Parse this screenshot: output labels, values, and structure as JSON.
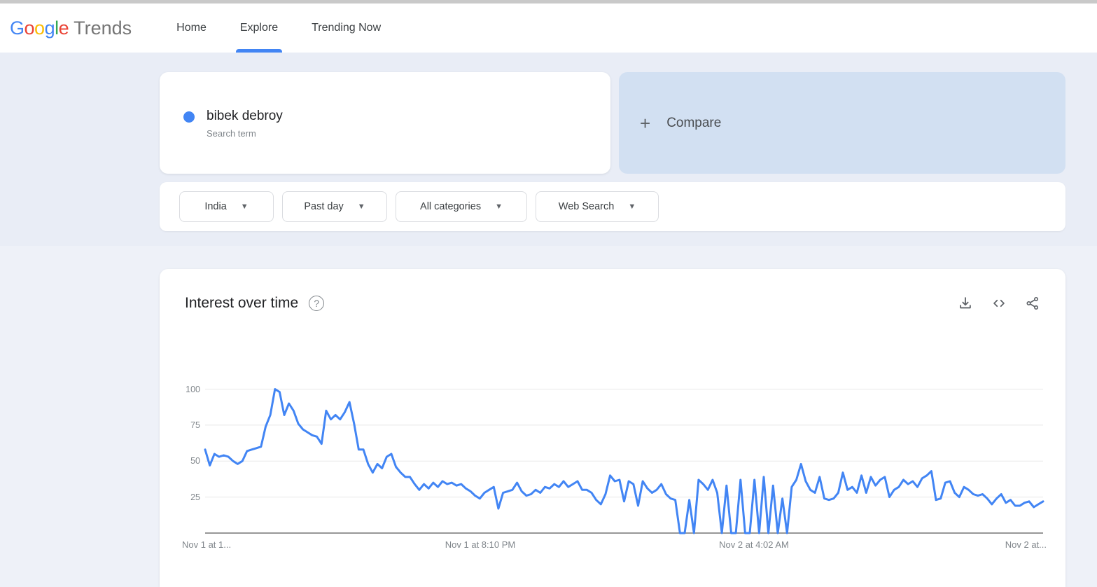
{
  "header": {
    "logo_letters": [
      {
        "ch": "G",
        "color": "#4285f4"
      },
      {
        "ch": "o",
        "color": "#ea4335"
      },
      {
        "ch": "o",
        "color": "#fbbc05"
      },
      {
        "ch": "g",
        "color": "#4285f4"
      },
      {
        "ch": "l",
        "color": "#34a853"
      },
      {
        "ch": "e",
        "color": "#ea4335"
      }
    ],
    "logo_suffix": "Trends",
    "nav": [
      {
        "label": "Home",
        "active": false
      },
      {
        "label": "Explore",
        "active": true
      },
      {
        "label": "Trending Now",
        "active": false
      }
    ]
  },
  "search_card": {
    "term": "bibek debroy",
    "type_label": "Search term",
    "dot_color": "#4285f4"
  },
  "compare_card": {
    "plus": "+",
    "label": "Compare"
  },
  "filters": [
    {
      "label": "India"
    },
    {
      "label": "Past day"
    },
    {
      "label": "All categories"
    },
    {
      "label": "Web Search"
    }
  ],
  "chart_card": {
    "title": "Interest over time",
    "help_glyph": "?",
    "action_icons": [
      "download-icon",
      "embed-icon",
      "share-icon"
    ]
  },
  "chart_data": {
    "type": "line",
    "title": "Interest over time",
    "series_name": "bibek debroy",
    "line_color": "#4285f4",
    "grid_color": "#e8e8e8",
    "axis_color": "#757575",
    "ylim": [
      0,
      100
    ],
    "y_ticks": [
      100,
      75,
      50,
      25
    ],
    "x_labels": [
      "Nov 1 at 1...",
      "Nov 1 at 8:10 PM",
      "Nov 2 at 4:02 AM",
      "Nov 2 at..."
    ],
    "values": [
      58,
      47,
      55,
      53,
      54,
      53,
      50,
      48,
      50,
      57,
      58,
      59,
      60,
      74,
      82,
      100,
      98,
      82,
      90,
      85,
      76,
      72,
      70,
      68,
      67,
      62,
      85,
      79,
      82,
      79,
      84,
      91,
      76,
      58,
      58,
      48,
      42,
      48,
      45,
      53,
      55,
      46,
      42,
      39,
      39,
      34,
      30,
      34,
      31,
      35,
      32,
      36,
      34,
      35,
      33,
      34,
      31,
      29,
      26,
      24,
      28,
      30,
      32,
      17,
      28,
      29,
      30,
      35,
      29,
      26,
      27,
      30,
      28,
      32,
      31,
      34,
      32,
      36,
      32,
      34,
      36,
      30,
      30,
      28,
      23,
      20,
      27,
      40,
      36,
      37,
      22,
      36,
      34,
      19,
      36,
      31,
      28,
      30,
      34,
      27,
      24,
      23,
      0,
      0,
      23,
      0,
      37,
      34,
      30,
      37,
      28,
      0,
      33,
      0,
      0,
      37,
      0,
      0,
      37,
      0,
      39,
      0,
      33,
      0,
      24,
      0,
      32,
      37,
      48,
      36,
      30,
      28,
      39,
      24,
      23,
      24,
      28,
      42,
      30,
      32,
      28,
      40,
      28,
      39,
      33,
      37,
      39,
      25,
      30,
      32,
      37,
      34,
      36,
      32,
      38,
      40,
      43,
      23,
      24,
      35,
      36,
      28,
      25,
      32,
      30,
      27,
      26,
      27,
      24,
      20,
      24,
      27,
      21,
      23,
      19,
      19,
      21,
      22,
      18,
      20,
      22
    ]
  }
}
